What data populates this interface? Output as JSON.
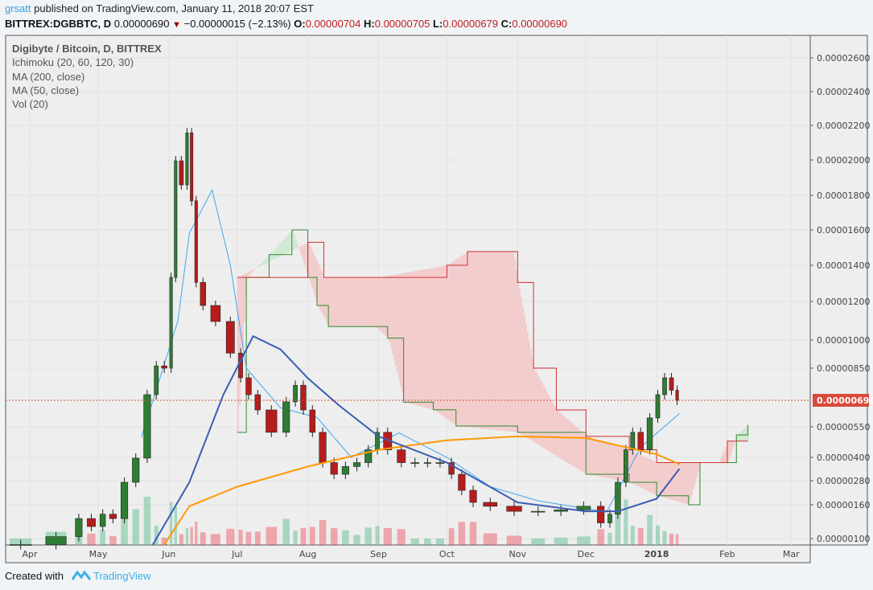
{
  "header": {
    "author": "grsatt",
    "published": "published on TradingView.com, January 11, 2018 20:07 EST",
    "symbol": "BITTREX:DGBBTC, D",
    "last": "0.00000690",
    "change": "−0.00000015 (−2.13%)",
    "o_label": "O:",
    "o": "0.00000704",
    "h_label": "H:",
    "h": "0.00000705",
    "l_label": "L:",
    "l": "0.00000679",
    "c_label": "C:",
    "c": "0.00000690",
    "direction_icon": "triangle-down-icon"
  },
  "legend": {
    "title": "Digibyte / Bitcoin, D, BITTREX",
    "items": [
      "Ichimoku (20, 60, 120, 30)",
      "MA (200, close)",
      "MA (50, close)",
      "Vol (20)"
    ]
  },
  "footer": {
    "created_with": "Created with",
    "brand": "TradingView",
    "logo_icon": "tradingview-logo-icon"
  },
  "chart_data": {
    "type": "candlestick",
    "scale": "compressed (non-linear) price axis",
    "ylim": [
      1e-06,
      2.7e-05
    ],
    "yticks": [
      "0.00002600",
      "0.00002400",
      "0.00002200",
      "0.00002000",
      "0.00001800",
      "0.00001600",
      "0.00001400",
      "0.00001200",
      "0.00001000",
      "0.00000850",
      "0.00000550",
      "0.00000400",
      "0.00000280",
      "0.00000160",
      "0.00000100"
    ],
    "last_price_label": "0.00000690",
    "xticks": [
      "Apr",
      "May",
      "Jun",
      "Jul",
      "Aug",
      "Sep",
      "Oct",
      "Nov",
      "Dec",
      "2018",
      "Feb",
      "Mar"
    ],
    "grid": true,
    "colors": {
      "up": "#53b987",
      "down": "#eb4d5c",
      "ma50": "#3a5db5",
      "ma200": "#ff9800",
      "conversion": "#3ea6f0",
      "span_a": "#2e8b2e",
      "span_b": "#d32f2f",
      "cloud_bear": "#f4c3c3",
      "cloud_bull": "#c8e6c9",
      "last": "#d94a3a"
    },
    "close": [
      [
        "2017-03-20",
        1.05e-06
      ],
      [
        "2017-04-05",
        1.05e-06
      ],
      [
        "2017-04-20",
        1.16e-06
      ],
      [
        "2017-04-25",
        1.41e-06
      ],
      [
        "2017-05-01",
        1.3e-06
      ],
      [
        "2017-05-05",
        1.47e-06
      ],
      [
        "2017-05-10",
        1.41e-06
      ],
      [
        "2017-05-15",
        2.72e-06
      ],
      [
        "2017-05-20",
        3.96e-06
      ],
      [
        "2017-05-25",
        7.18e-06
      ],
      [
        "2017-05-28",
        8.62e-06
      ],
      [
        "2017-06-01",
        8.5e-06
      ],
      [
        "2017-06-03",
        1.333e-05
      ],
      [
        "2017-06-05",
        1.995e-05
      ],
      [
        "2017-06-08",
        1.859e-05
      ],
      [
        "2017-06-10",
        2.157e-05
      ],
      [
        "2017-06-12",
        1.768e-05
      ],
      [
        "2017-06-14",
        1.305e-05
      ],
      [
        "2017-06-18",
        1.179e-05
      ],
      [
        "2017-06-25",
        1.096e-05
      ],
      [
        "2017-07-01",
        9.3e-06
      ],
      [
        "2017-07-04",
        8.02e-06
      ],
      [
        "2017-07-08",
        7.18e-06
      ],
      [
        "2017-07-12",
        6.39e-06
      ],
      [
        "2017-07-20",
        5.23e-06
      ],
      [
        "2017-07-25",
        6.82e-06
      ],
      [
        "2017-07-28",
        7.65e-06
      ],
      [
        "2017-08-01",
        6.39e-06
      ],
      [
        "2017-08-05",
        5.23e-06
      ],
      [
        "2017-08-10",
        3.73e-06
      ],
      [
        "2017-08-15",
        3.13e-06
      ],
      [
        "2017-08-20",
        3.53e-06
      ],
      [
        "2017-08-25",
        3.73e-06
      ],
      [
        "2017-08-30",
        4.37e-06
      ],
      [
        "2017-09-02",
        5.23e-06
      ],
      [
        "2017-09-08",
        4.37e-06
      ],
      [
        "2017-09-14",
        3.73e-06
      ],
      [
        "2017-09-20",
        3.73e-06
      ],
      [
        "2017-09-25",
        3.73e-06
      ],
      [
        "2017-10-01",
        3.73e-06
      ],
      [
        "2017-10-05",
        3.13e-06
      ],
      [
        "2017-10-10",
        2.32e-06
      ],
      [
        "2017-10-15",
        1.72e-06
      ],
      [
        "2017-10-25",
        1.58e-06
      ],
      [
        "2017-11-05",
        1.51e-06
      ],
      [
        "2017-11-15",
        1.51e-06
      ],
      [
        "2017-11-25",
        1.53e-06
      ],
      [
        "2017-12-05",
        1.58e-06
      ],
      [
        "2017-12-10",
        1.35e-06
      ],
      [
        "2017-12-13",
        1.47e-06
      ],
      [
        "2017-12-17",
        2.72e-06
      ],
      [
        "2017-12-20",
        4.37e-06
      ],
      [
        "2017-12-23",
        5.23e-06
      ],
      [
        "2017-12-27",
        4.37e-06
      ],
      [
        "2017-12-31",
        5.97e-06
      ],
      [
        "2018-01-03",
        7.18e-06
      ],
      [
        "2018-01-06",
        8.02e-06
      ],
      [
        "2018-01-09",
        7.4e-06
      ],
      [
        "2018-01-11",
        6.9e-06
      ]
    ],
    "ma50": [
      [
        "2017-05-25",
        1.05e-06
      ],
      [
        "2017-06-10",
        2.72e-06
      ],
      [
        "2017-06-25",
        7.2e-06
      ],
      [
        "2017-07-08",
        1.02e-05
      ],
      [
        "2017-07-20",
        9.5e-06
      ],
      [
        "2017-08-01",
        8e-06
      ],
      [
        "2017-08-15",
        6.6e-06
      ],
      [
        "2017-09-01",
        5.03e-06
      ],
      [
        "2017-10-01",
        3.73e-06
      ],
      [
        "2017-11-01",
        1.72e-06
      ],
      [
        "2017-12-01",
        1.51e-06
      ],
      [
        "2017-12-15",
        1.51e-06
      ],
      [
        "2018-01-01",
        1.9e-06
      ],
      [
        "2018-01-11",
        3.41e-06
      ]
    ],
    "ma200": [
      [
        "2017-05-30",
        1.05e-06
      ],
      [
        "2017-06-10",
        1.58e-06
      ],
      [
        "2017-07-01",
        2.5e-06
      ],
      [
        "2017-08-01",
        3.53e-06
      ],
      [
        "2017-09-01",
        4.37e-06
      ],
      [
        "2017-10-01",
        4.84e-06
      ],
      [
        "2017-11-01",
        5.03e-06
      ],
      [
        "2017-12-01",
        4.95e-06
      ],
      [
        "2018-01-01",
        4.15e-06
      ],
      [
        "2018-01-11",
        3.65e-06
      ]
    ],
    "conversion_line": [
      [
        "2017-05-20",
        5e-06
      ],
      [
        "2017-06-05",
        1.1e-05
      ],
      [
        "2017-06-10",
        1.58e-05
      ],
      [
        "2017-06-20",
        1.83e-05
      ],
      [
        "2017-06-28",
        1.4e-05
      ],
      [
        "2017-07-05",
        8.5e-06
      ],
      [
        "2017-07-20",
        6.5e-06
      ],
      [
        "2017-08-05",
        6e-06
      ],
      [
        "2017-08-20",
        4e-06
      ],
      [
        "2017-09-10",
        5.2e-06
      ],
      [
        "2017-10-01",
        4e-06
      ],
      [
        "2017-10-20",
        2.5e-06
      ],
      [
        "2017-11-10",
        1.8e-06
      ],
      [
        "2017-12-10",
        1.5e-06
      ],
      [
        "2017-12-25",
        4.5e-06
      ],
      [
        "2018-01-11",
        6.2e-06
      ]
    ],
    "span_a": [
      [
        "2017-07-01",
        5.23e-06
      ],
      [
        "2017-07-05",
        1.333e-05
      ],
      [
        "2017-07-15",
        1.46e-05
      ],
      [
        "2017-07-25",
        1.6e-05
      ],
      [
        "2017-08-01",
        1.333e-05
      ],
      [
        "2017-08-05",
        1.179e-05
      ],
      [
        "2017-08-10",
        1.07e-05
      ],
      [
        "2017-08-30",
        1.07e-05
      ],
      [
        "2017-09-05",
        1.01e-05
      ],
      [
        "2017-09-12",
        6.8e-06
      ],
      [
        "2017-09-25",
        6.4e-06
      ],
      [
        "2017-10-05",
        5.54e-06
      ],
      [
        "2017-11-01",
        5.23e-06
      ],
      [
        "2017-12-01",
        3.13e-06
      ],
      [
        "2017-12-20",
        2.72e-06
      ],
      [
        "2018-01-01",
        2.05e-06
      ],
      [
        "2018-01-15",
        1.6e-06
      ],
      [
        "2018-01-20",
        3.73e-06
      ],
      [
        "2018-02-01",
        3.73e-06
      ],
      [
        "2018-02-05",
        5.1e-06
      ],
      [
        "2018-02-10",
        5.6e-06
      ]
    ],
    "span_b": [
      [
        "2017-07-01",
        1.333e-05
      ],
      [
        "2017-08-01",
        1.53e-05
      ],
      [
        "2017-08-08",
        1.333e-05
      ],
      [
        "2017-09-01",
        1.333e-05
      ],
      [
        "2017-10-01",
        1.4e-05
      ],
      [
        "2017-10-10",
        1.477e-05
      ],
      [
        "2017-10-30",
        1.477e-05
      ],
      [
        "2017-11-01",
        1.305e-05
      ],
      [
        "2017-11-08",
        8.5e-06
      ],
      [
        "2017-11-18",
        6.39e-06
      ],
      [
        "2017-12-01",
        5.03e-06
      ],
      [
        "2017-12-20",
        4.37e-06
      ],
      [
        "2018-01-01",
        3.73e-06
      ],
      [
        "2018-01-15",
        3.73e-06
      ],
      [
        "2018-01-28",
        3.73e-06
      ],
      [
        "2018-02-01",
        4.8e-06
      ],
      [
        "2018-02-10",
        4.8e-06
      ]
    ]
  }
}
